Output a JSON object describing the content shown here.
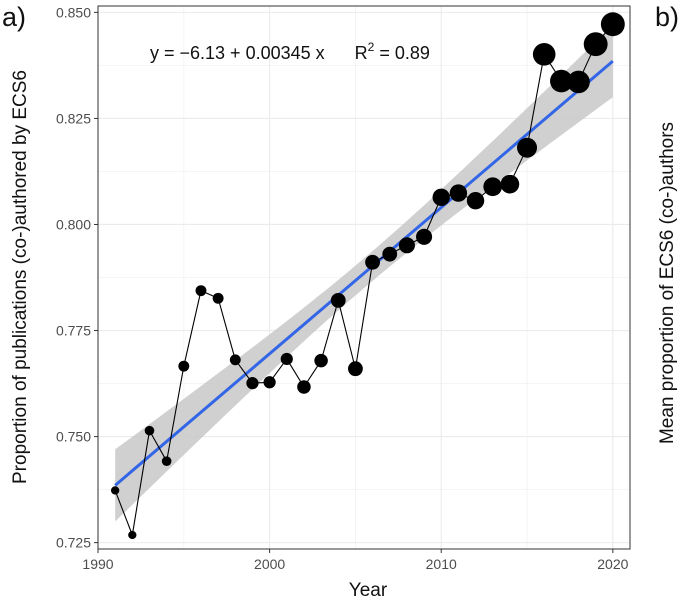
{
  "figure": {
    "panel_a_tag": "a)",
    "panel_b_tag": "b)",
    "panel_b_ylabel": "Mean proportion of ECS6 (co-)authors"
  },
  "colors": {
    "fit_line": "#3366e6",
    "confidence_band": "#c8c8c8",
    "points": "#000000",
    "grid": "#ebebeb",
    "panel_border": "#333333",
    "tick_text": "#4d4d4d"
  },
  "chart_data": {
    "type": "scatter",
    "xlabel": "Year",
    "ylabel": "Proportion of publications (co-)authored by ECS6",
    "xlim": [
      1990,
      2021
    ],
    "ylim": [
      0.7235,
      0.8515
    ],
    "x_ticks": [
      1990,
      2000,
      2010,
      2020
    ],
    "y_ticks": [
      0.725,
      0.75,
      0.775,
      0.8,
      0.825,
      0.85
    ],
    "y_tick_labels": [
      "0.725",
      "0.750",
      "0.775",
      "0.800",
      "0.825",
      "0.850"
    ],
    "grid": true,
    "annotation": {
      "equation": "y = −6.13 + 0.00345 x",
      "r2_label": "R",
      "r2_exponent": "2",
      "r2_value": " = 0.89"
    },
    "series": [
      {
        "x": [
          1991,
          1992,
          1993,
          1994,
          1995,
          1996,
          1997,
          1998,
          1999,
          2000,
          2001,
          2002,
          2003,
          2004,
          2005,
          2006,
          2007,
          2008,
          2009,
          2010,
          2011,
          2012,
          2013,
          2014,
          2015,
          2016,
          2017,
          2018,
          2019,
          2020
        ],
        "y": [
          0.7373,
          0.7268,
          0.7514,
          0.7442,
          0.7666,
          0.7844,
          0.7826,
          0.7681,
          0.7626,
          0.7628,
          0.7683,
          0.7617,
          0.7679,
          0.7821,
          0.766,
          0.7911,
          0.793,
          0.7951,
          0.7971,
          0.8064,
          0.8074,
          0.8056,
          0.8089,
          0.8095,
          0.8181,
          0.8401,
          0.8338,
          0.8336,
          0.8425,
          0.8472
        ],
        "point_weight": [
          1,
          1,
          2,
          2,
          3,
          3,
          3,
          3,
          4,
          4,
          4,
          5,
          5,
          6,
          6,
          6,
          6,
          7,
          7,
          8,
          8,
          8,
          9,
          9,
          10,
          12,
          12,
          12,
          13,
          13
        ]
      }
    ],
    "trend": {
      "x_start": 1991,
      "y_start": 0.7385,
      "x_end": 2020,
      "y_end": 0.8385,
      "band_halfwidth_ends": 0.0085,
      "band_halfwidth_center": 0.0035
    }
  }
}
